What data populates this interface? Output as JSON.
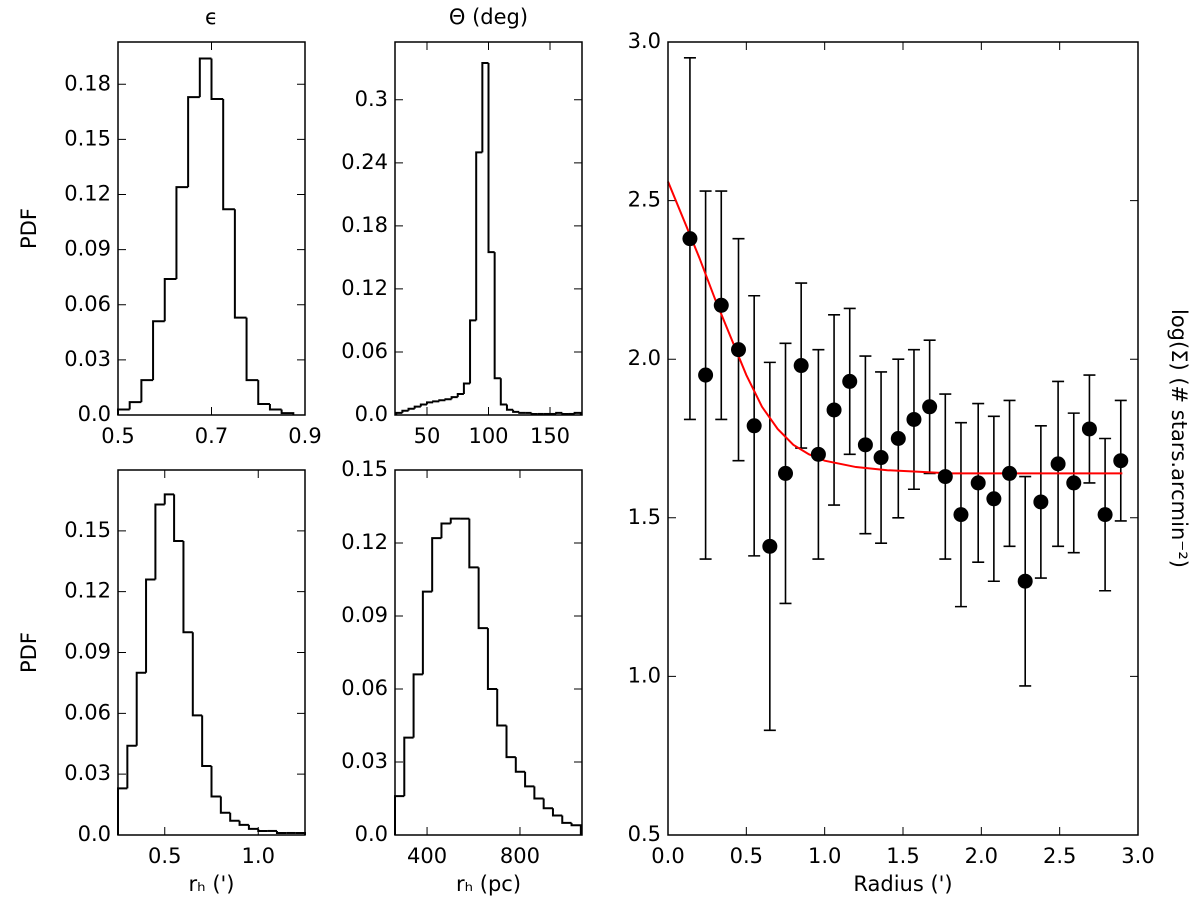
{
  "chart_data": [
    {
      "type": "histogram",
      "title": "ϵ",
      "ylabel": "PDF",
      "color": "#000000",
      "bins": [
        0.5,
        0.525,
        0.55,
        0.575,
        0.6,
        0.625,
        0.65,
        0.675,
        0.7,
        0.725,
        0.75,
        0.775,
        0.8,
        0.825,
        0.85,
        0.875
      ],
      "values": [
        0.003,
        0.007,
        0.019,
        0.051,
        0.074,
        0.124,
        0.173,
        0.194,
        0.172,
        0.112,
        0.053,
        0.019,
        0.006,
        0.003,
        0.001
      ],
      "xlim": [
        0.5,
        0.9
      ],
      "ylim": [
        0,
        0.203
      ],
      "xticks": [
        0.5,
        0.7,
        0.9
      ],
      "yticks": [
        {
          "value": 0,
          "label": "0.0"
        },
        0.03,
        0.06,
        0.09,
        0.12,
        0.15,
        0.18
      ]
    },
    {
      "type": "histogram",
      "title": "Θ (deg)",
      "color": "#000000",
      "bins": [
        25,
        30,
        35,
        40,
        45,
        50,
        55,
        60,
        65,
        70,
        75,
        80,
        85,
        90,
        95,
        100,
        105,
        110,
        115,
        120,
        125,
        130,
        135,
        140,
        145,
        150,
        155,
        160,
        165,
        170,
        175
      ],
      "values": [
        0.002,
        0.004,
        0.006,
        0.008,
        0.01,
        0.012,
        0.013,
        0.014,
        0.015,
        0.017,
        0.02,
        0.03,
        0.09,
        0.25,
        0.335,
        0.155,
        0.035,
        0.01,
        0.005,
        0.003,
        0.002,
        0.002,
        0.001,
        0.001,
        0.001,
        0.001,
        0.002,
        0.001,
        0.001,
        0.002
      ],
      "xlim": [
        24,
        176
      ],
      "ylim": [
        0,
        0.355
      ],
      "xticks": [
        50,
        100,
        150
      ],
      "yticks": [
        {
          "value": 0,
          "label": "0.0"
        },
        0.06,
        0.12,
        0.18,
        0.24,
        0.3
      ]
    },
    {
      "type": "histogram",
      "ylabel": "PDF",
      "xlabel": "rₕ (')",
      "color": "#000000",
      "bins": [
        0.25,
        0.3,
        0.35,
        0.4,
        0.45,
        0.5,
        0.55,
        0.6,
        0.65,
        0.7,
        0.75,
        0.8,
        0.85,
        0.9,
        0.95,
        1.0,
        1.05,
        1.1,
        1.15,
        1.2,
        1.25
      ],
      "values": [
        0.023,
        0.044,
        0.08,
        0.126,
        0.163,
        0.168,
        0.145,
        0.1,
        0.059,
        0.034,
        0.019,
        0.011,
        0.007,
        0.005,
        0.003,
        0.002,
        0.002,
        0.001,
        0.001,
        0.001
      ],
      "xlim": [
        0.25,
        1.25
      ],
      "ylim": [
        0,
        0.18
      ],
      "xticks": [
        0.5,
        {
          "value": 1,
          "label": "1.0"
        }
      ],
      "yticks": [
        {
          "value": 0,
          "label": "0.0"
        },
        0.03,
        0.06,
        0.09,
        0.12,
        0.15
      ]
    },
    {
      "type": "histogram",
      "xlabel": "rₕ (pc)",
      "color": "#000000",
      "bins": [
        262,
        302,
        342,
        382,
        422,
        462,
        502,
        542,
        582,
        622,
        662,
        702,
        742,
        782,
        822,
        862,
        902,
        942,
        982,
        1022,
        1062
      ],
      "values": [
        0.016,
        0.04,
        0.066,
        0.1,
        0.122,
        0.128,
        0.13,
        0.13,
        0.11,
        0.085,
        0.06,
        0.045,
        0.032,
        0.026,
        0.02,
        0.015,
        0.011,
        0.008,
        0.005,
        0.004
      ],
      "xlim": [
        262,
        1067
      ],
      "ylim": [
        0,
        0.15
      ],
      "xticks": [
        400,
        800
      ],
      "yticks": [
        {
          "value": 0,
          "label": "0.0"
        },
        0.03,
        0.06,
        0.09,
        0.12,
        0.15
      ]
    },
    {
      "type": "errorbar",
      "xlabel": "Radius (')",
      "ylabel": "log(Σ) (# stars.arcmin⁻²)",
      "color": "#000000",
      "x": [
        0.14,
        0.24,
        0.34,
        0.45,
        0.55,
        0.65,
        0.75,
        0.85,
        0.96,
        1.06,
        1.16,
        1.26,
        1.36,
        1.47,
        1.57,
        1.67,
        1.77,
        1.87,
        1.98,
        2.08,
        2.18,
        2.28,
        2.38,
        2.49,
        2.59,
        2.69,
        2.79,
        2.89
      ],
      "values": [
        2.38,
        1.95,
        2.17,
        2.03,
        1.79,
        1.41,
        1.64,
        1.98,
        1.7,
        1.84,
        1.93,
        1.73,
        1.69,
        1.75,
        1.81,
        1.85,
        1.63,
        1.51,
        1.61,
        1.56,
        1.64,
        1.3,
        1.55,
        1.67,
        1.61,
        1.78,
        1.51,
        1.68
      ],
      "errors": [
        0.57,
        0.58,
        0.36,
        0.35,
        0.41,
        0.58,
        0.41,
        0.26,
        0.33,
        0.3,
        0.23,
        0.28,
        0.27,
        0.25,
        0.22,
        0.21,
        0.26,
        0.29,
        0.25,
        0.26,
        0.23,
        0.33,
        0.24,
        0.26,
        0.22,
        0.17,
        0.24,
        0.19
      ],
      "fit": {
        "color": "#ff0000",
        "x": [
          0,
          0.1,
          0.2,
          0.3,
          0.4,
          0.5,
          0.6,
          0.7,
          0.8,
          0.9,
          1.0,
          1.2,
          1.4,
          1.6,
          1.8,
          2.9
        ],
        "values": [
          2.56,
          2.44,
          2.32,
          2.19,
          2.07,
          1.95,
          1.85,
          1.78,
          1.73,
          1.7,
          1.68,
          1.66,
          1.65,
          1.645,
          1.64,
          1.64
        ]
      },
      "xlim": [
        0,
        3
      ],
      "ylim": [
        0.5,
        3
      ],
      "xticks": [
        {
          "value": 0,
          "label": "0.0"
        },
        0.5,
        {
          "value": 1,
          "label": "1.0"
        },
        1.5,
        {
          "value": 2,
          "label": "2.0"
        },
        2.5,
        {
          "value": 3,
          "label": "3.0"
        }
      ],
      "yticks": [
        0.5,
        {
          "value": 1,
          "label": "1.0"
        },
        1.5,
        {
          "value": 2,
          "label": "2.0"
        },
        2.5,
        {
          "value": 3,
          "label": "3.0"
        }
      ]
    }
  ]
}
